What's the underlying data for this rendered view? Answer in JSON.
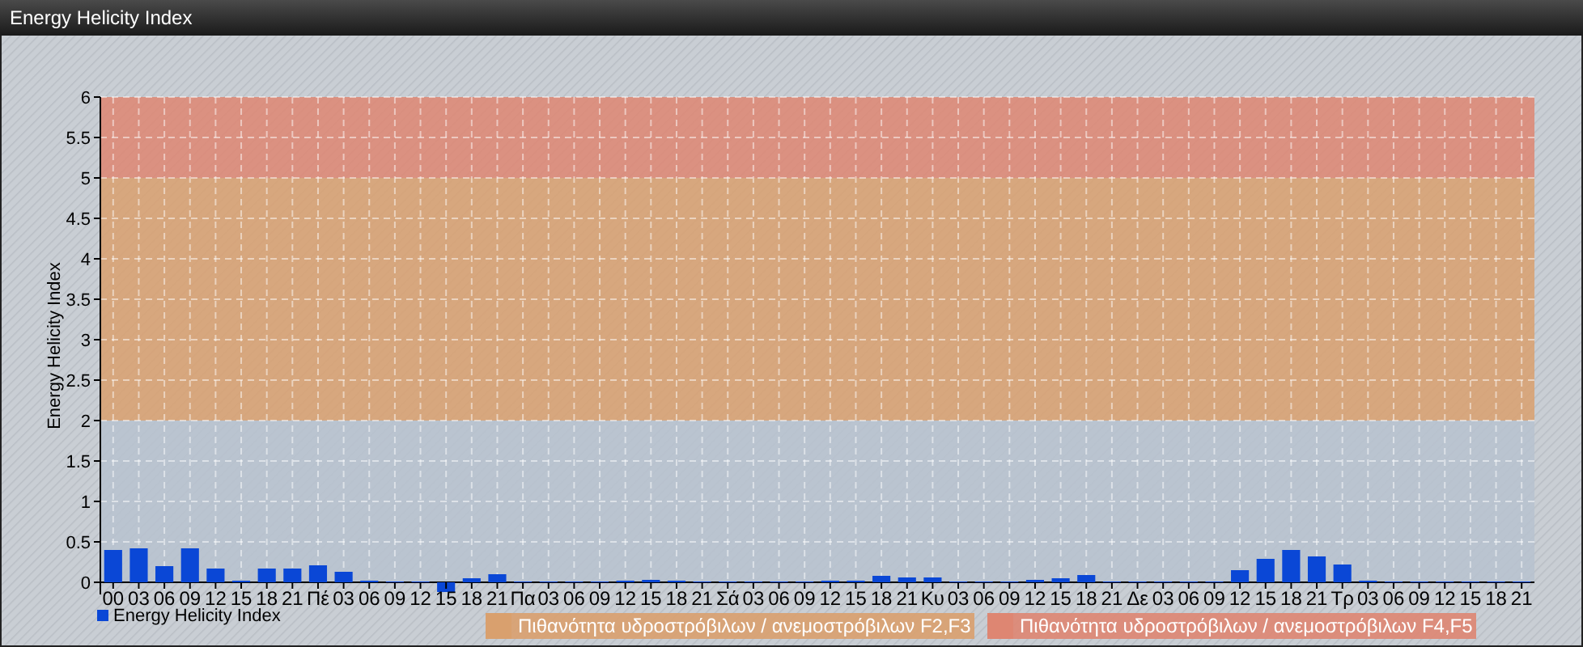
{
  "chart_data": {
    "type": "bar",
    "title": "Energy Helicity Index",
    "ylabel": "Energy Helicity Index",
    "categories": [
      "00",
      "03",
      "06",
      "09",
      "12",
      "15",
      "18",
      "21",
      "Πέ",
      "03",
      "06",
      "09",
      "12",
      "15",
      "18",
      "21",
      "Πα",
      "03",
      "06",
      "09",
      "12",
      "15",
      "18",
      "21",
      "Σά",
      "03",
      "06",
      "09",
      "12",
      "15",
      "18",
      "21",
      "Κυ",
      "03",
      "06",
      "09",
      "12",
      "15",
      "18",
      "21",
      "Δε",
      "03",
      "06",
      "09",
      "12",
      "15",
      "18",
      "21",
      "Τρ",
      "03",
      "06",
      "09",
      "12",
      "15",
      "18",
      "21"
    ],
    "series": [
      {
        "name": "Energy Helicity Index",
        "color": "#0a47d6",
        "values": [
          0.4,
          0.42,
          0.2,
          0.42,
          0.17,
          0.02,
          0.17,
          0.17,
          0.21,
          0.13,
          0.02,
          0.01,
          0.01,
          -0.12,
          0.05,
          0.1,
          0.01,
          0.01,
          0.01,
          0.01,
          0.02,
          0.03,
          0.02,
          0.01,
          0.01,
          0.01,
          0.01,
          0.01,
          0.02,
          0.02,
          0.08,
          0.06,
          0.06,
          0.01,
          0.01,
          0.01,
          0.03,
          0.05,
          0.09,
          0.01,
          0.01,
          0.01,
          0.01,
          0.01,
          0.15,
          0.29,
          0.4,
          0.32,
          0.22,
          0.02,
          0.01,
          0.01,
          0.01,
          0.01,
          0.01,
          0.01
        ]
      }
    ],
    "ylim": [
      -0.15,
      6
    ],
    "yticks": [
      0,
      0.5,
      1,
      1.5,
      2,
      2.5,
      3,
      3.5,
      4,
      4.5,
      5,
      5.5,
      6
    ],
    "bands": [
      {
        "axis": "y",
        "from": 0,
        "to": 2,
        "color": "#b7c2cf"
      },
      {
        "axis": "y",
        "from": 2,
        "to": 5,
        "color": "#d9a06e",
        "label": "Πιθανότητα υδροστρόβιλων / ανεμοστρόβιλων F2,F3"
      },
      {
        "axis": "y",
        "from": 5,
        "to": 6,
        "color": "#de8672",
        "label": "Πιθανότητα υδροστρόβιλων / ανεμοστρόβιλων F4,F5"
      }
    ],
    "grid": true,
    "legend": "bottom left"
  }
}
